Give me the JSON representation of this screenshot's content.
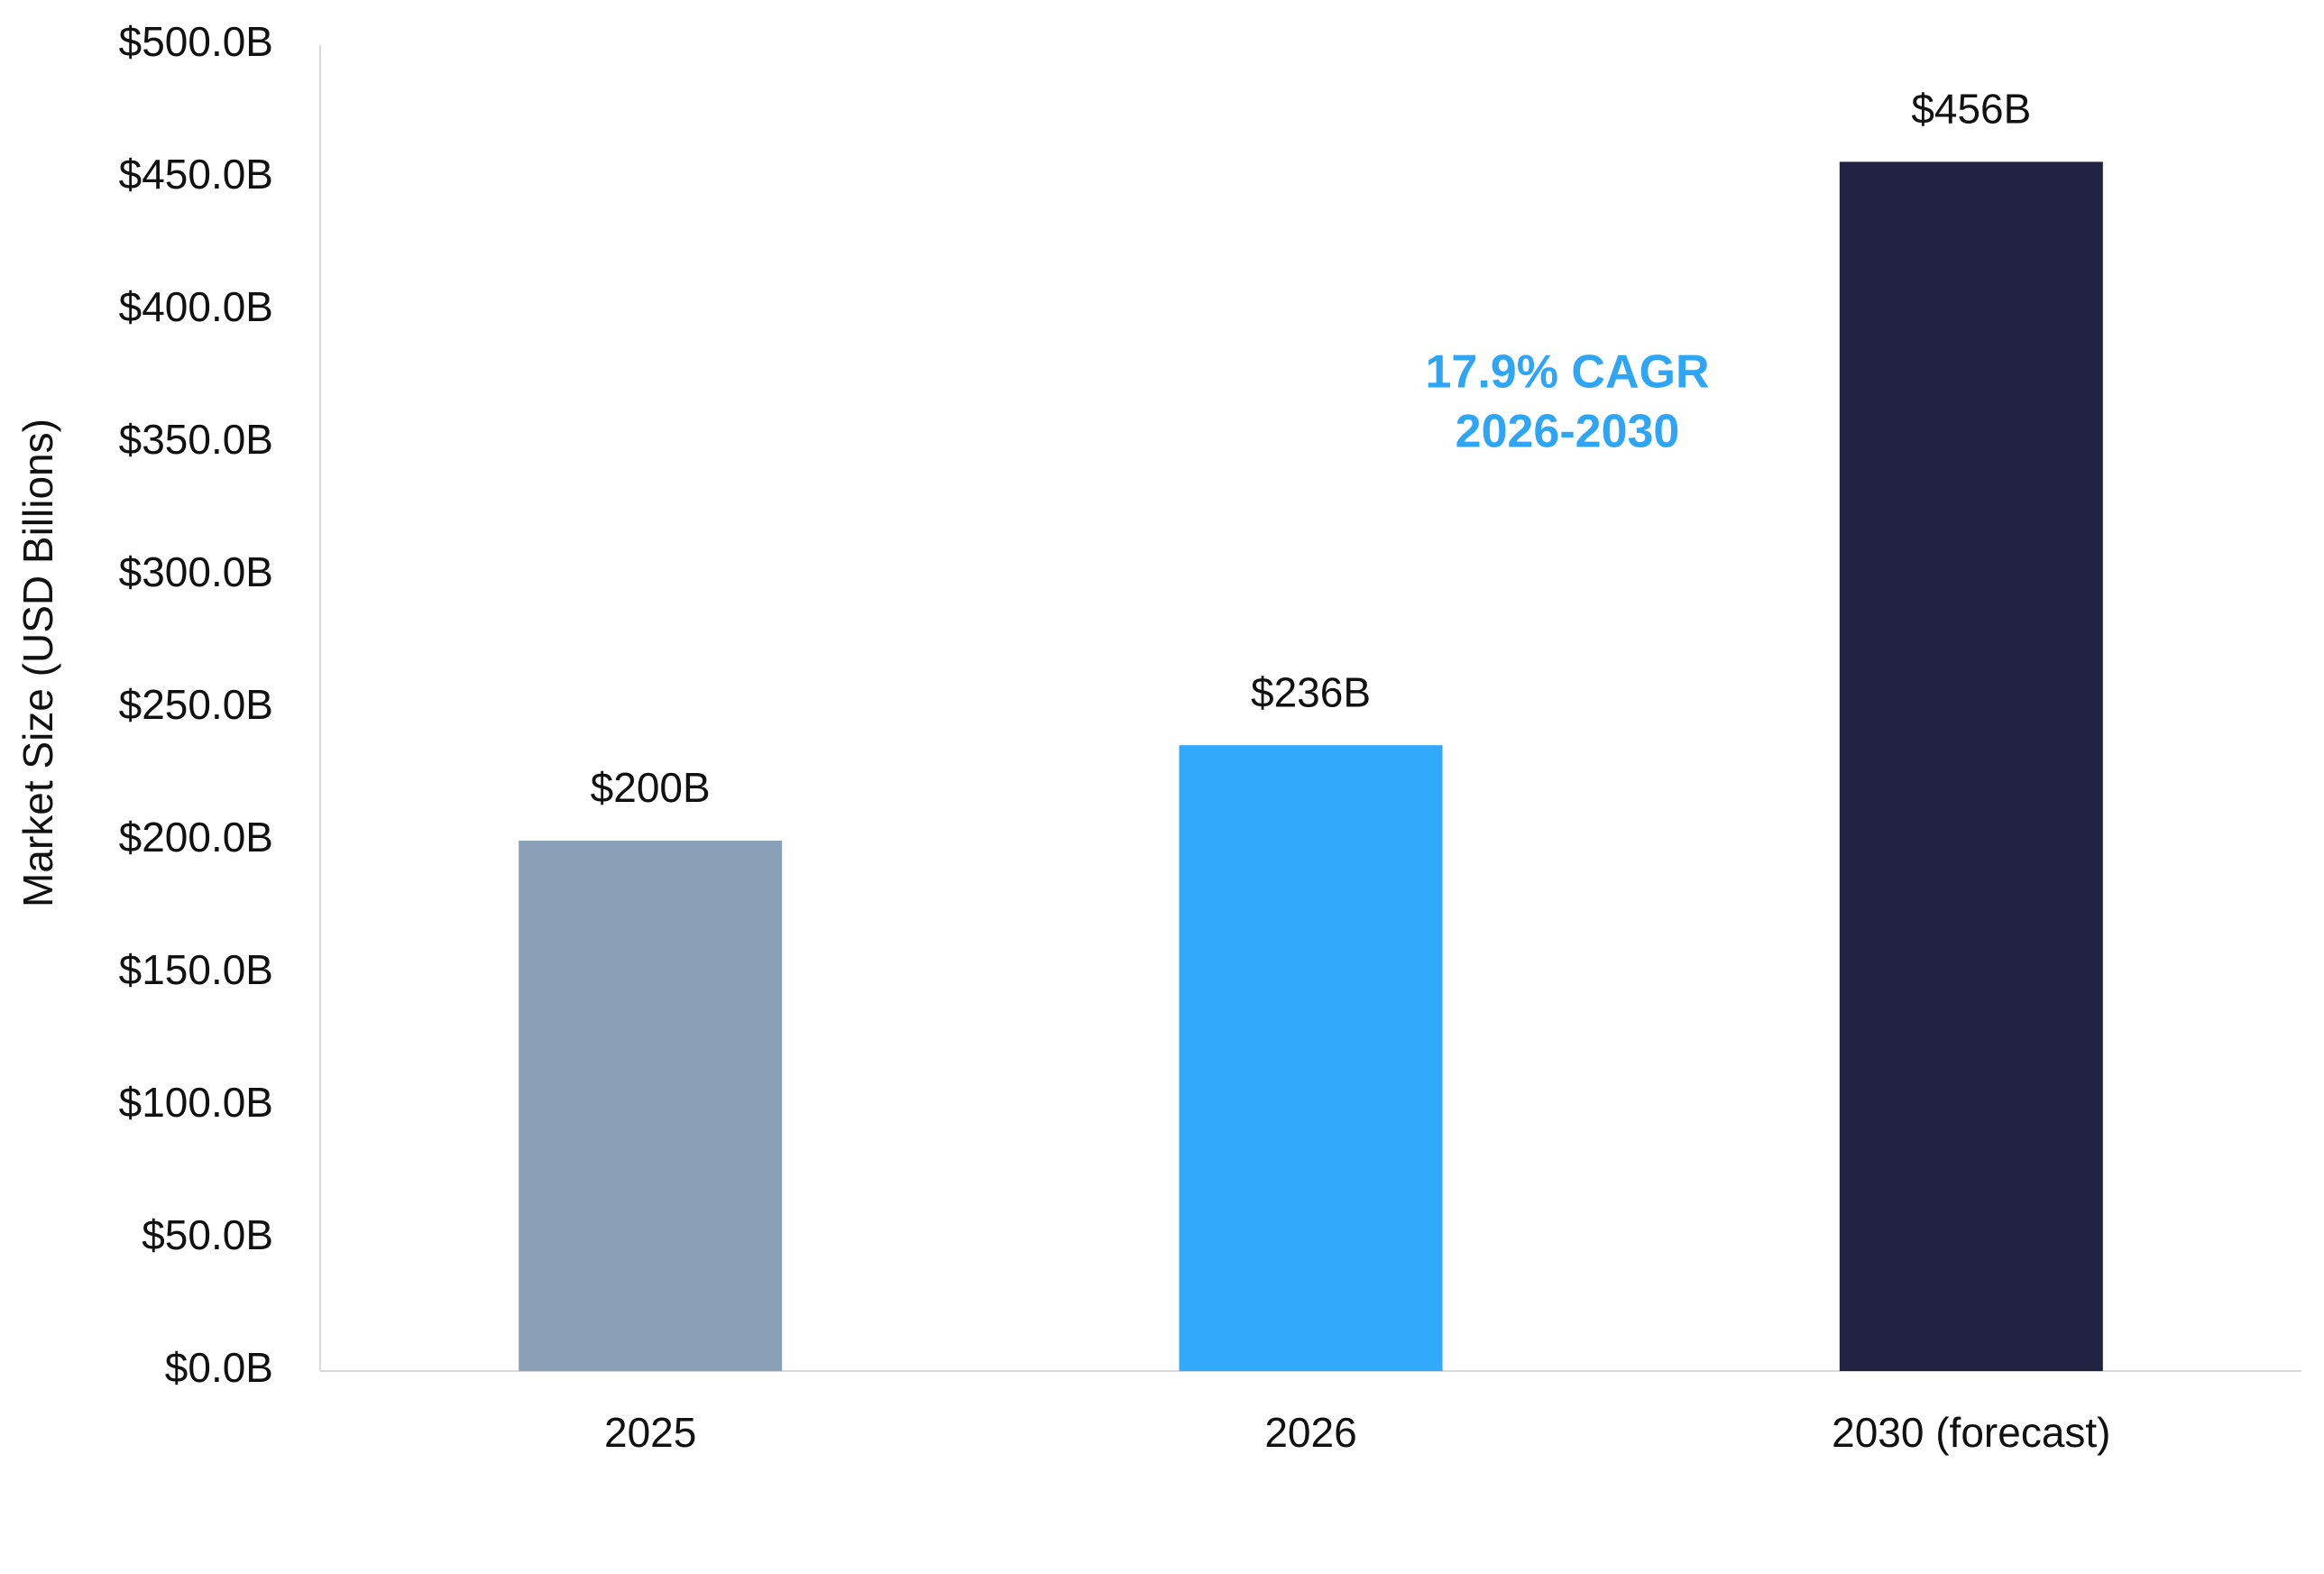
{
  "chart_data": {
    "type": "bar",
    "y_label": "Market Size (USD Billions)",
    "categories": [
      "2025",
      "2026",
      "2030 (forecast)"
    ],
    "values": [
      200,
      236,
      456
    ],
    "value_labels": [
      "$200B",
      "$236B",
      "$456B"
    ],
    "colors": [
      "#8aa0b7",
      "#33a9fc",
      "#222343"
    ],
    "annotation": [
      "17.9% CAGR",
      "2026-2030"
    ],
    "annotation_color": "#2fa6f5",
    "ylim": [
      0,
      500
    ],
    "yticks": [
      {
        "value": 0,
        "label": "$0.0B"
      },
      {
        "value": 50,
        "label": "$50.0B"
      },
      {
        "value": 100,
        "label": "$100.0B"
      },
      {
        "value": 150,
        "label": "$150.0B"
      },
      {
        "value": 200,
        "label": "$200.0B"
      },
      {
        "value": 250,
        "label": "$250.0B"
      },
      {
        "value": 300,
        "label": "$300.0B"
      },
      {
        "value": 350,
        "label": "$350.0B"
      },
      {
        "value": 400,
        "label": "$400.0B"
      },
      {
        "value": 450,
        "label": "$450.0B"
      },
      {
        "value": 500,
        "label": "$500.0B"
      }
    ],
    "grid": false
  }
}
